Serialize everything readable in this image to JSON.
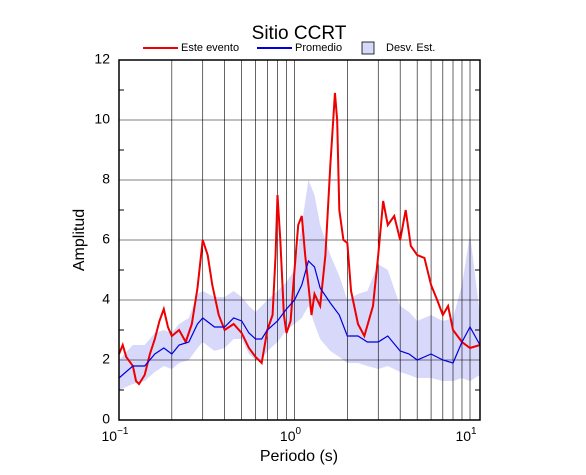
{
  "chart_data": {
    "type": "line",
    "title": "Sitio CCRT",
    "xlabel": "Periodo (s)",
    "ylabel": "Amplitud",
    "xscale": "log",
    "xlim": [
      0.1,
      11.4
    ],
    "ylim": [
      0,
      12
    ],
    "xticks": [
      {
        "value": 0.1,
        "label": "10",
        "exponent": "−1"
      },
      {
        "value": 1,
        "label": "10",
        "exponent": "0"
      },
      {
        "value": 10,
        "label": "10",
        "exponent": "1"
      }
    ],
    "xminorticks": [
      0.2,
      0.3,
      0.4,
      0.5,
      0.6,
      0.7,
      0.8,
      0.9,
      2,
      3,
      4,
      5,
      6,
      7,
      8,
      9
    ],
    "yticks": [
      0,
      2,
      4,
      6,
      8,
      10,
      12
    ],
    "yminorticks": [
      1,
      3,
      5,
      7,
      9,
      11
    ],
    "grid": true,
    "series": [
      {
        "name": "Este evento",
        "color": "#ee0000",
        "x": [
          0.1,
          0.105,
          0.11,
          0.12,
          0.125,
          0.13,
          0.14,
          0.15,
          0.16,
          0.17,
          0.18,
          0.19,
          0.2,
          0.22,
          0.24,
          0.26,
          0.28,
          0.3,
          0.32,
          0.34,
          0.37,
          0.4,
          0.45,
          0.5,
          0.55,
          0.6,
          0.65,
          0.7,
          0.75,
          0.78,
          0.8,
          0.83,
          0.87,
          0.9,
          0.95,
          1.0,
          1.05,
          1.1,
          1.15,
          1.2,
          1.25,
          1.3,
          1.4,
          1.5,
          1.6,
          1.7,
          1.75,
          1.8,
          1.9,
          2.0,
          2.1,
          2.3,
          2.5,
          2.8,
          3.0,
          3.2,
          3.4,
          3.7,
          4.0,
          4.3,
          4.6,
          5.0,
          5.5,
          6.0,
          6.5,
          7.0,
          7.5,
          8.0,
          9.0,
          10.0,
          11.4
        ],
        "values": [
          2.2,
          2.5,
          2.1,
          1.8,
          1.3,
          1.2,
          1.5,
          2.2,
          2.7,
          3.3,
          3.7,
          3.1,
          2.8,
          3.0,
          2.6,
          3.2,
          4.4,
          6.0,
          5.5,
          4.5,
          3.5,
          3.0,
          3.2,
          2.9,
          2.4,
          2.1,
          1.9,
          3.0,
          3.5,
          5.5,
          7.5,
          6.0,
          3.5,
          2.9,
          3.3,
          5.0,
          6.5,
          6.8,
          5.5,
          4.5,
          3.5,
          4.2,
          3.8,
          5.5,
          8.5,
          10.9,
          10.0,
          7.0,
          6.0,
          5.9,
          4.3,
          3.2,
          2.8,
          3.8,
          5.5,
          7.3,
          6.5,
          6.8,
          6.0,
          7.0,
          5.8,
          5.5,
          5.4,
          4.5,
          4.0,
          3.5,
          3.8,
          3.0,
          2.6,
          2.4,
          2.5
        ]
      },
      {
        "name": "Promedio",
        "color": "#0000dd",
        "x": [
          0.1,
          0.12,
          0.14,
          0.16,
          0.18,
          0.2,
          0.22,
          0.25,
          0.28,
          0.3,
          0.35,
          0.4,
          0.45,
          0.5,
          0.55,
          0.6,
          0.65,
          0.7,
          0.8,
          0.9,
          1.0,
          1.1,
          1.2,
          1.3,
          1.4,
          1.6,
          1.8,
          2.0,
          2.3,
          2.6,
          3.0,
          3.4,
          4.0,
          4.5,
          5.0,
          6.0,
          7.0,
          8.0,
          9.0,
          10.0,
          11.4
        ],
        "values": [
          1.4,
          1.8,
          1.8,
          2.2,
          2.4,
          2.2,
          2.5,
          2.6,
          3.2,
          3.4,
          3.1,
          3.1,
          3.4,
          3.3,
          2.9,
          2.7,
          2.7,
          3.0,
          3.3,
          3.7,
          4.0,
          4.5,
          5.3,
          5.1,
          4.4,
          3.9,
          3.5,
          2.8,
          2.8,
          2.6,
          2.6,
          2.8,
          2.3,
          2.2,
          2.0,
          2.2,
          2.0,
          1.9,
          2.6,
          3.1,
          2.5
        ]
      },
      {
        "name": "Desv. Est.",
        "color": "#d8d8fa",
        "x": [
          0.1,
          0.12,
          0.14,
          0.16,
          0.18,
          0.2,
          0.22,
          0.25,
          0.28,
          0.3,
          0.35,
          0.4,
          0.45,
          0.5,
          0.55,
          0.6,
          0.65,
          0.7,
          0.8,
          0.9,
          1.0,
          1.1,
          1.2,
          1.3,
          1.4,
          1.6,
          1.8,
          2.0,
          2.3,
          2.6,
          3.0,
          3.4,
          4.0,
          4.5,
          5.0,
          6.0,
          7.0,
          8.0,
          9.0,
          10.0,
          11.4
        ],
        "lower": [
          1.0,
          1.2,
          1.3,
          1.6,
          1.8,
          1.7,
          1.9,
          2.0,
          2.4,
          2.6,
          2.3,
          2.4,
          2.7,
          2.7,
          2.2,
          2.0,
          2.0,
          2.3,
          2.6,
          3.0,
          3.2,
          3.4,
          3.8,
          3.2,
          2.7,
          2.3,
          2.1,
          1.9,
          1.9,
          1.8,
          1.7,
          1.8,
          1.6,
          1.5,
          1.4,
          1.4,
          1.3,
          1.3,
          1.4,
          1.3,
          1.5
        ],
        "upper": [
          2.0,
          2.5,
          2.5,
          2.9,
          3.0,
          2.9,
          3.2,
          3.4,
          4.2,
          4.3,
          4.1,
          4.1,
          4.3,
          4.1,
          3.8,
          3.6,
          3.8,
          4.0,
          4.3,
          4.6,
          5.0,
          6.5,
          8.0,
          7.5,
          6.5,
          5.5,
          4.8,
          4.0,
          4.2,
          4.3,
          5.2,
          5.0,
          3.8,
          3.6,
          3.3,
          3.5,
          3.3,
          3.4,
          4.5,
          6.2,
          3.5
        ]
      }
    ]
  }
}
